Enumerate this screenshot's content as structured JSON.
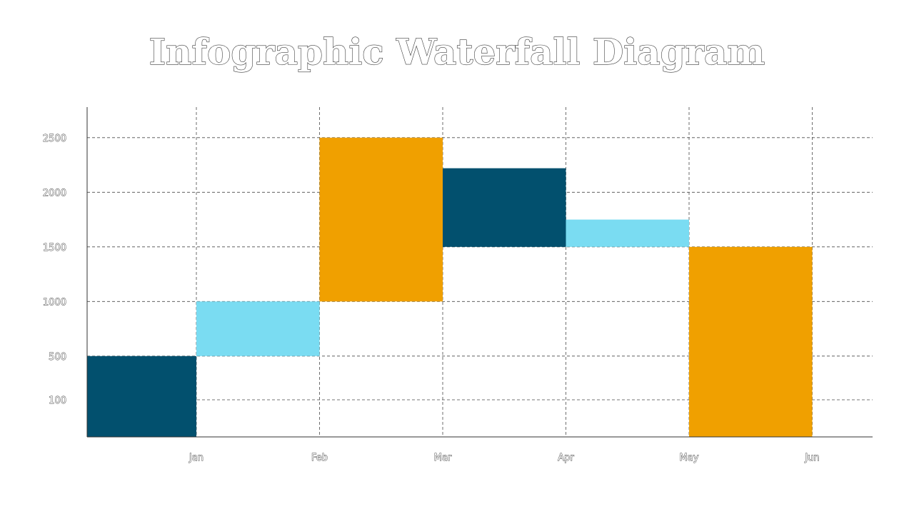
{
  "chart_data": {
    "type": "bar",
    "subtype": "waterfall",
    "title": "Infographic Waterfall Diagram",
    "xlabel": "",
    "ylabel": "",
    "x_ticks": [
      "Jan",
      "Feb",
      "Mar",
      "Apr",
      "May",
      "Jun"
    ],
    "y_ticks": [
      100,
      500,
      1000,
      1500,
      2000,
      2500
    ],
    "ylim": [
      -240,
      2780
    ],
    "grid": true,
    "bars": [
      {
        "start": -240,
        "end": 500,
        "color": "#02506E"
      },
      {
        "start": 500,
        "end": 1000,
        "color": "#7ADCF2"
      },
      {
        "start": 1000,
        "end": 2500,
        "color": "#F0A000"
      },
      {
        "start": 1500,
        "end": 2220,
        "color": "#02506E"
      },
      {
        "start": 1500,
        "end": 1750,
        "color": "#7ADCF2"
      },
      {
        "start": -240,
        "end": 1500,
        "color": "#F0A000"
      }
    ],
    "colors": {
      "dark_blue": "#02506E",
      "light_blue": "#7ADCF2",
      "orange": "#F0A000"
    }
  }
}
